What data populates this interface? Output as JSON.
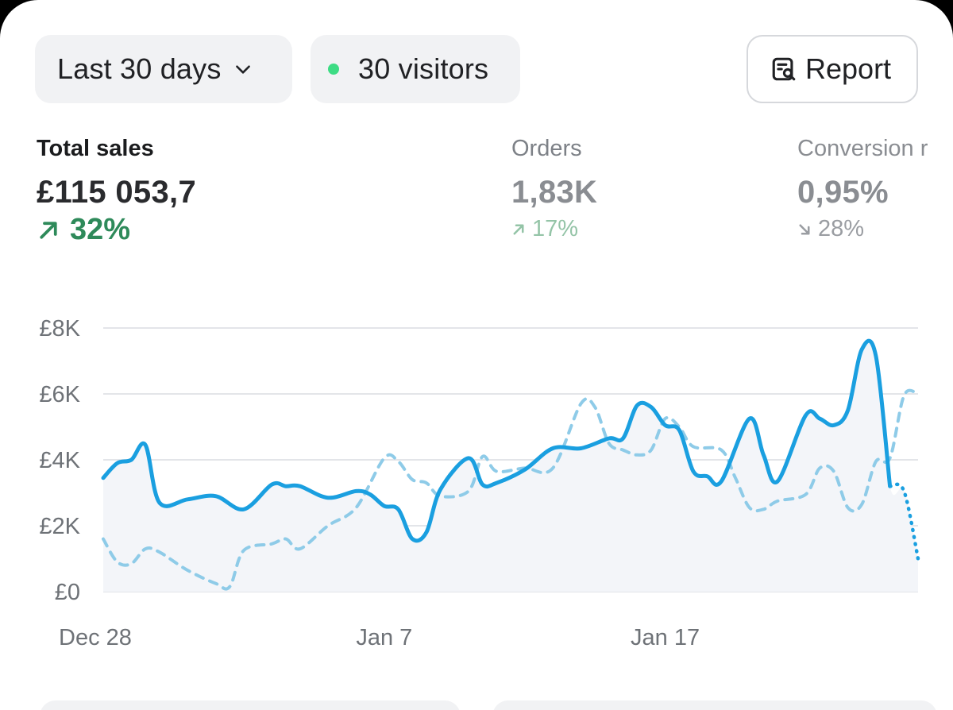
{
  "toolbar": {
    "range_label": "Last 30 days",
    "visitors_label": "30 visitors",
    "report_label": "Report",
    "live_dot_color": "#3ddc84",
    "icons": {
      "range": "chevron-down-icon",
      "report": "report-search-icon"
    }
  },
  "metrics": {
    "total_sales": {
      "label": "Total sales",
      "value": "£115 053,7",
      "delta": "32%",
      "direction": "up"
    },
    "orders": {
      "label": "Orders",
      "value": "1,83K",
      "delta": "17%",
      "direction": "up"
    },
    "conversion": {
      "label": "Conversion r",
      "value": "0,95%",
      "delta": "28%",
      "direction": "down"
    }
  },
  "chart_data": {
    "type": "line",
    "y_ticks": [
      "£0",
      "£2K",
      "£4K",
      "£6K",
      "£8K"
    ],
    "x_ticks": [
      "Dec 28",
      "Jan 7",
      "Jan 17"
    ],
    "ylim": [
      0,
      8000
    ],
    "grid": true,
    "colors": {
      "current": "#1a9fe0",
      "previous": "#8ecbe8",
      "area": "#f3f5f9",
      "grid": "#e3e5e9"
    },
    "series": [
      {
        "style": "solid",
        "x": [
          0,
          0.5,
          1,
          1.5,
          2,
          3,
          4,
          5,
          6,
          6.5,
          7,
          8,
          9,
          9.5,
          10,
          10.5,
          11,
          11.5,
          12,
          13,
          13.5,
          14,
          15,
          16,
          17,
          18,
          18.5,
          19,
          19.5,
          20,
          20.5,
          21,
          21.5,
          22,
          23,
          23.5,
          24,
          25,
          25.5,
          26,
          26.5,
          27,
          27.5,
          28,
          28.5,
          29
        ],
        "y": [
          3450,
          3900,
          4000,
          4450,
          2700,
          2800,
          2900,
          2500,
          3250,
          3200,
          3200,
          2850,
          3050,
          2950,
          2600,
          2500,
          1600,
          1800,
          3100,
          4050,
          3250,
          3300,
          3700,
          4350,
          4350,
          4650,
          4650,
          5650,
          5600,
          5050,
          4900,
          3650,
          3500,
          3350,
          5250,
          4150,
          3350,
          5350,
          5250,
          5050,
          5500,
          7350,
          7150,
          3200,
          3050,
          1000
        ],
        "projected_from_index": 43
      },
      {
        "style": "dashed",
        "x": [
          0,
          0.5,
          1,
          1.5,
          2,
          3,
          4,
          4.5,
          5,
          6,
          6.5,
          7,
          8,
          9,
          10,
          10.5,
          11,
          11.5,
          12,
          13,
          13.5,
          14,
          15,
          16,
          17,
          17.5,
          18,
          18.5,
          19,
          19.5,
          20,
          20.5,
          21,
          22,
          22.5,
          23,
          23.5,
          24,
          25,
          25.5,
          26,
          26.5,
          27,
          27.5,
          28,
          28.5,
          29
        ],
        "y": [
          1600,
          900,
          850,
          1300,
          1200,
          650,
          250,
          150,
          1250,
          1450,
          1600,
          1300,
          2000,
          2550,
          4050,
          3950,
          3400,
          3300,
          2900,
          3050,
          4100,
          3650,
          3750,
          3750,
          5700,
          5600,
          4500,
          4300,
          4150,
          4300,
          5250,
          5000,
          4400,
          4300,
          3450,
          2550,
          2500,
          2750,
          2950,
          3750,
          3650,
          2550,
          2650,
          3950,
          4050,
          5950,
          6000
        ]
      }
    ]
  }
}
